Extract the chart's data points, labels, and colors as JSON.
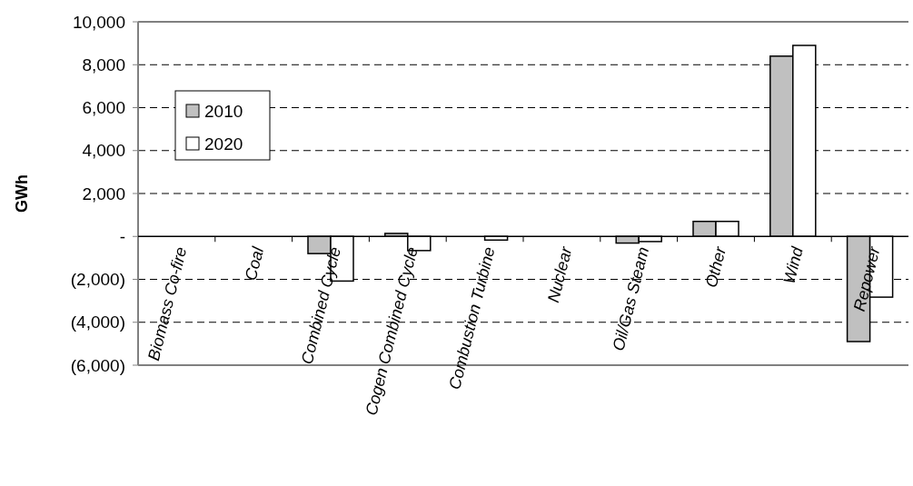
{
  "chart_data": {
    "type": "bar",
    "ylabel": "GWh",
    "categories": [
      "Biomass Co-fire",
      "Coal",
      "Combined Cycle",
      "Cogen Combined Cycle",
      "Combustion Turbine",
      "Nuclear",
      "Oil/Gas Steam",
      "Other",
      "Wind",
      "Repower"
    ],
    "series": [
      {
        "name": "2010",
        "color": "#c0c0c0",
        "values": [
          0,
          0,
          -800,
          140,
          0,
          0,
          -310,
          700,
          8400,
          -4900
        ]
      },
      {
        "name": "2020",
        "color": "#ffffff",
        "values": [
          0,
          0,
          -2080,
          -660,
          -170,
          0,
          -240,
          700,
          8900,
          -2830
        ]
      }
    ],
    "ylim": [
      -6000,
      10000
    ],
    "yticks": [
      {
        "value": -6000,
        "label": "(6,000)"
      },
      {
        "value": -4000,
        "label": "(4,000)"
      },
      {
        "value": -2000,
        "label": "(2,000)"
      },
      {
        "value": 0,
        "label": "-"
      },
      {
        "value": 2000,
        "label": "2,000"
      },
      {
        "value": 4000,
        "label": "4,000"
      },
      {
        "value": 6000,
        "label": "6,000"
      },
      {
        "value": 8000,
        "label": "8,000"
      },
      {
        "value": 10000,
        "label": "10,000"
      }
    ],
    "grid": "y",
    "legend": "top left"
  }
}
